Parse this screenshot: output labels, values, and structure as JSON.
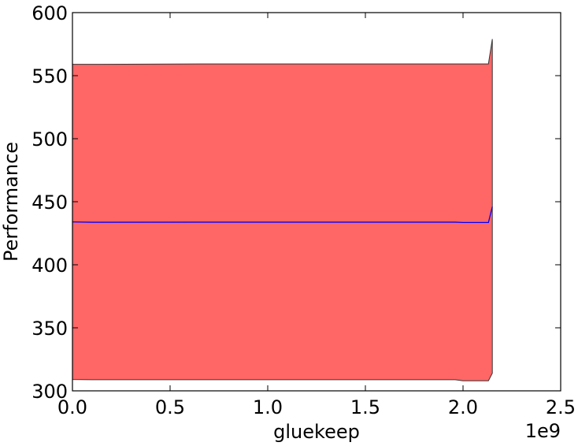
{
  "chart_data": {
    "type": "area",
    "title": "",
    "xlabel": "gluekeep",
    "ylabel": "Performance",
    "x_offset_label": "1e9",
    "xlim": [
      0.0,
      2.5
    ],
    "ylim": [
      300,
      600
    ],
    "x_ticks": [
      0.0,
      0.5,
      1.0,
      1.5,
      2.0,
      2.5
    ],
    "x_tick_labels": [
      "0.0",
      "0.5",
      "1.0",
      "1.5",
      "2.0",
      "2.5"
    ],
    "y_ticks": [
      300,
      350,
      400,
      450,
      500,
      550,
      600
    ],
    "y_tick_labels": [
      "300",
      "350",
      "400",
      "450",
      "500",
      "550",
      "600"
    ],
    "grid": false,
    "series": [
      {
        "role": "mean",
        "color": "#0000ff",
        "x": [
          0.0,
          0.1,
          0.7,
          1.0,
          1.5,
          1.96,
          2.0,
          2.13,
          2.15
        ],
        "y": [
          434,
          433.7,
          433.8,
          433.8,
          433.8,
          433.8,
          433.5,
          433.5,
          446
        ]
      },
      {
        "role": "band",
        "fill_color": "#ff6666",
        "edge_color": "#333333",
        "x": [
          0.0,
          0.1,
          0.7,
          1.0,
          1.5,
          1.96,
          2.0,
          2.13,
          2.15
        ],
        "upper": [
          559,
          559,
          559.3,
          559.3,
          559.3,
          559.3,
          559.3,
          559.3,
          579
        ],
        "lower": [
          309,
          308.8,
          308.8,
          308.8,
          308.8,
          308.8,
          308,
          308,
          314
        ]
      }
    ]
  }
}
